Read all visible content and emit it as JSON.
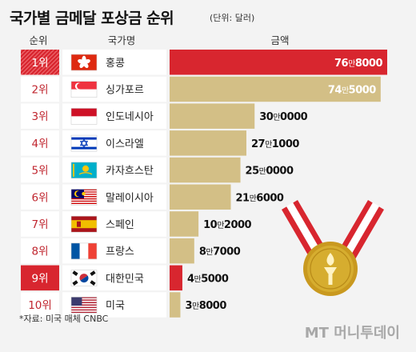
{
  "title": "국가별 금메달 포상금 순위",
  "unit_note": "(단위: 달러)",
  "headers": {
    "rank": "순위",
    "country": "국가명",
    "amount": "금액"
  },
  "source": "*자료: 미국 매체 CNBC",
  "brand": "MT 머니투데이",
  "colors": {
    "highlight": "#d8262f",
    "bar": "#d3bf86",
    "row": "#ffffff",
    "medal": "#d6ad2f"
  },
  "chart_data": {
    "type": "bar",
    "orientation": "horizontal",
    "categories": [
      "홍콩",
      "싱가포르",
      "인도네시아",
      "이스라엘",
      "카자흐스탄",
      "말레이시아",
      "스페인",
      "프랑스",
      "대한민국",
      "미국"
    ],
    "ranks": [
      "1위",
      "2위",
      "3위",
      "4위",
      "5위",
      "6위",
      "7위",
      "8위",
      "9위",
      "10위"
    ],
    "values": [
      768000,
      745000,
      300000,
      271000,
      250000,
      216000,
      102000,
      87000,
      45000,
      38000
    ],
    "value_labels": [
      {
        "main": "76",
        "unit": "만",
        "rest": "8000"
      },
      {
        "main": "74",
        "unit": "만",
        "rest": "5000"
      },
      {
        "main": "30",
        "unit": "만",
        "rest": "0000"
      },
      {
        "main": "27",
        "unit": "만",
        "rest": "1000"
      },
      {
        "main": "25",
        "unit": "만",
        "rest": "0000"
      },
      {
        "main": "21",
        "unit": "만",
        "rest": "6000"
      },
      {
        "main": "10",
        "unit": "만",
        "rest": "2000"
      },
      {
        "main": "8",
        "unit": "만",
        "rest": "7000"
      },
      {
        "main": "4",
        "unit": "만",
        "rest": "5000"
      },
      {
        "main": "3",
        "unit": "만",
        "rest": "8000"
      }
    ],
    "highlighted": [
      "홍콩",
      "대한민국"
    ],
    "flags": [
      "hong-kong",
      "singapore",
      "indonesia",
      "israel",
      "kazakhstan",
      "malaysia",
      "spain",
      "france",
      "south-korea",
      "usa"
    ],
    "xlim": [
      0,
      768000
    ],
    "grid": false
  }
}
